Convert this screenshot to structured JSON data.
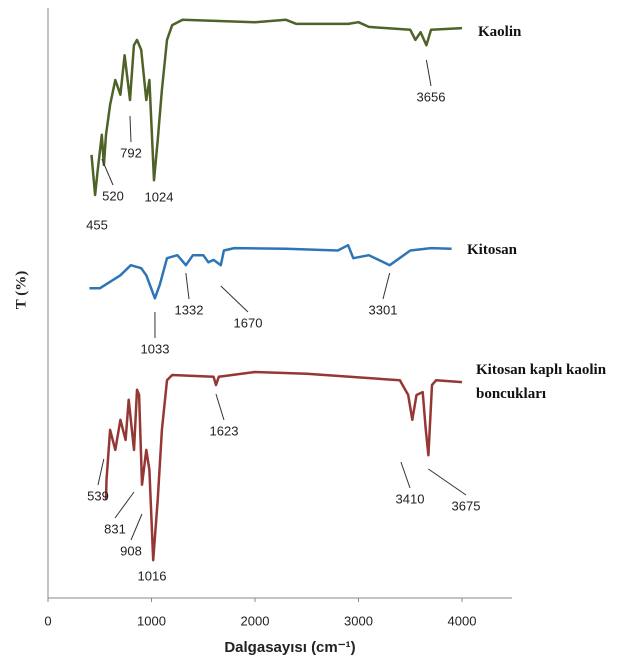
{
  "chart_data": {
    "type": "line",
    "xlabel": "Dalgasayısı (cm⁻¹)",
    "ylabel": "T (%)",
    "xlim": [
      0,
      4000
    ],
    "xticks": [
      0,
      1000,
      2000,
      3000,
      4000
    ],
    "ylim": [
      0,
      100
    ],
    "series": [
      {
        "name": "Kaolin",
        "color": "#4f6228",
        "x": [
          420,
          455,
          480,
          520,
          540,
          560,
          600,
          650,
          700,
          740,
          792,
          830,
          860,
          900,
          950,
          980,
          1024,
          1060,
          1100,
          1150,
          1200,
          1300,
          2000,
          2300,
          2400,
          2900,
          3000,
          3100,
          3500,
          3550,
          3600,
          3656,
          3700,
          4000
        ],
        "values": [
          75.1,
          68.3,
          72.5,
          78.5,
          73.4,
          78.5,
          83.6,
          87.8,
          85.3,
          92.0,
          84.4,
          93.7,
          94.6,
          92.9,
          84.4,
          87.8,
          70.8,
          77.6,
          86.1,
          94.6,
          97.1,
          98.0,
          97.6,
          98.0,
          97.3,
          97.3,
          97.6,
          96.8,
          96.3,
          94.6,
          95.9,
          93.7,
          96.3,
          96.6
        ],
        "peaks": [
          455,
          520,
          792,
          1024,
          3656
        ]
      },
      {
        "name": "Kitosan",
        "color": "#2e75b6",
        "x": [
          400,
          500,
          600,
          700,
          800,
          900,
          950,
          1033,
          1080,
          1150,
          1250,
          1332,
          1400,
          1500,
          1550,
          1600,
          1670,
          1700,
          1800,
          2300,
          2800,
          2900,
          2950,
          3100,
          3301,
          3500,
          3700,
          3900
        ],
        "values": [
          52.5,
          52.5,
          53.6,
          54.7,
          56.4,
          55.9,
          54.7,
          50.8,
          53.1,
          57.6,
          58.1,
          56.4,
          58.1,
          58.1,
          56.9,
          57.3,
          56.4,
          58.9,
          59.3,
          59.2,
          58.9,
          59.8,
          57.6,
          58.1,
          56.4,
          58.9,
          59.3,
          59.2
        ],
        "peaks": [
          1033,
          1332,
          1670,
          3301
        ]
      },
      {
        "name": "Kitosan kaplı kaolin boncukları",
        "color": "#953735",
        "x": [
          560,
          565,
          600,
          650,
          700,
          750,
          780,
          831,
          860,
          880,
          908,
          950,
          980,
          1016,
          1060,
          1100,
          1150,
          1200,
          1600,
          1623,
          1650,
          2000,
          2500,
          3400,
          3480,
          3520,
          3560,
          3620,
          3650,
          3675,
          3710,
          3750,
          4000
        ],
        "values": [
          16.6,
          20.0,
          28.5,
          25.1,
          30.2,
          26.8,
          33.6,
          25.1,
          35.3,
          34.4,
          19.2,
          25.1,
          21.7,
          6.4,
          16.6,
          28.5,
          36.9,
          37.8,
          37.5,
          36.1,
          37.5,
          38.3,
          38.0,
          36.9,
          34.4,
          30.2,
          34.4,
          34.9,
          28.5,
          24.2,
          36.1,
          36.9,
          36.6
        ],
        "peaks": [
          539,
          831,
          908,
          1016,
          1623,
          3410,
          3675
        ]
      }
    ]
  }
}
